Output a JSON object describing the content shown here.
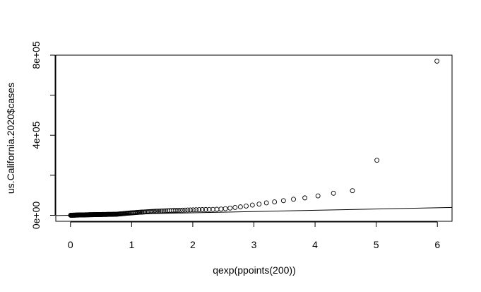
{
  "chart_data": {
    "type": "scatter",
    "title": "",
    "xlabel": "qexp(ppoints(200))",
    "ylabel": "us.California.2020$cases",
    "xlim": [
      -0.24,
      6.24
    ],
    "ylim": [
      -30000,
      800000
    ],
    "x_ticks": [
      0,
      1,
      2,
      3,
      4,
      5,
      6
    ],
    "x_tick_labels": [
      "0",
      "1",
      "2",
      "3",
      "4",
      "5",
      "6"
    ],
    "y_ticks": [
      0,
      400000,
      800000
    ],
    "y_tick_labels": [
      "0e+00",
      "4e+05",
      "8e+05"
    ],
    "y_minor_ticks": [
      200000,
      600000
    ],
    "grid": false,
    "reference_line": {
      "slope": 6300,
      "intercept": 0
    },
    "points": [
      [
        0.0025,
        100
      ],
      [
        0.0075,
        200
      ],
      [
        0.0125,
        250
      ],
      [
        0.0176,
        300
      ],
      [
        0.0227,
        350
      ],
      [
        0.0278,
        400
      ],
      [
        0.033,
        450
      ],
      [
        0.0382,
        500
      ],
      [
        0.0434,
        550
      ],
      [
        0.0486,
        600
      ],
      [
        0.0539,
        650
      ],
      [
        0.0592,
        700
      ],
      [
        0.0646,
        750
      ],
      [
        0.07,
        800
      ],
      [
        0.0754,
        850
      ],
      [
        0.0808,
        900
      ],
      [
        0.0863,
        950
      ],
      [
        0.0919,
        1000
      ],
      [
        0.0974,
        1050
      ],
      [
        0.103,
        1100
      ],
      [
        0.1087,
        1150
      ],
      [
        0.1143,
        1200
      ],
      [
        0.1201,
        1250
      ],
      [
        0.1258,
        1300
      ],
      [
        0.1316,
        1350
      ],
      [
        0.1374,
        1400
      ],
      [
        0.1433,
        1450
      ],
      [
        0.1492,
        1500
      ],
      [
        0.1552,
        1550
      ],
      [
        0.1612,
        1600
      ],
      [
        0.1672,
        1650
      ],
      [
        0.1733,
        1700
      ],
      [
        0.1795,
        1750
      ],
      [
        0.1856,
        1800
      ],
      [
        0.1919,
        1850
      ],
      [
        0.1981,
        1900
      ],
      [
        0.2045,
        1950
      ],
      [
        0.2108,
        2000
      ],
      [
        0.2172,
        2050
      ],
      [
        0.2237,
        2100
      ],
      [
        0.2302,
        2150
      ],
      [
        0.2368,
        2200
      ],
      [
        0.2434,
        2250
      ],
      [
        0.2501,
        2300
      ],
      [
        0.2568,
        2350
      ],
      [
        0.2636,
        2400
      ],
      [
        0.2704,
        2450
      ],
      [
        0.2773,
        2500
      ],
      [
        0.2843,
        2550
      ],
      [
        0.2913,
        2600
      ],
      [
        0.2984,
        2650
      ],
      [
        0.3055,
        2700
      ],
      [
        0.3127,
        2750
      ],
      [
        0.32,
        2800
      ],
      [
        0.3273,
        2850
      ],
      [
        0.3347,
        2900
      ],
      [
        0.3422,
        2950
      ],
      [
        0.3497,
        3000
      ],
      [
        0.3573,
        3050
      ],
      [
        0.365,
        3100
      ],
      [
        0.3727,
        3150
      ],
      [
        0.3805,
        3200
      ],
      [
        0.3884,
        3250
      ],
      [
        0.3964,
        3300
      ],
      [
        0.4045,
        3350
      ],
      [
        0.4126,
        3400
      ],
      [
        0.4208,
        3450
      ],
      [
        0.4291,
        3500
      ],
      [
        0.4375,
        3550
      ],
      [
        0.446,
        3600
      ],
      [
        0.4545,
        3650
      ],
      [
        0.4632,
        3700
      ],
      [
        0.4719,
        3750
      ],
      [
        0.4808,
        3800
      ],
      [
        0.4897,
        3850
      ],
      [
        0.4987,
        3900
      ],
      [
        0.5079,
        3950
      ],
      [
        0.5171,
        4000
      ],
      [
        0.5264,
        4050
      ],
      [
        0.5359,
        4100
      ],
      [
        0.5455,
        4150
      ],
      [
        0.5551,
        4200
      ],
      [
        0.5649,
        4250
      ],
      [
        0.5748,
        4300
      ],
      [
        0.5849,
        4350
      ],
      [
        0.595,
        4400
      ],
      [
        0.6053,
        4450
      ],
      [
        0.6157,
        4500
      ],
      [
        0.6263,
        4550
      ],
      [
        0.6369,
        4600
      ],
      [
        0.6477,
        4650
      ],
      [
        0.6587,
        4700
      ],
      [
        0.6698,
        4750
      ],
      [
        0.681,
        4800
      ],
      [
        0.6924,
        4850
      ],
      [
        0.704,
        4900
      ],
      [
        0.7157,
        4950
      ],
      [
        0.7276,
        5000
      ],
      [
        0.7396,
        5050
      ],
      [
        0.7518,
        5100
      ],
      [
        0.7642,
        5500
      ],
      [
        0.7768,
        5900
      ],
      [
        0.7896,
        6300
      ],
      [
        0.8025,
        6700
      ],
      [
        0.8157,
        7100
      ],
      [
        0.829,
        7500
      ],
      [
        0.8426,
        7900
      ],
      [
        0.8564,
        8300
      ],
      [
        0.8704,
        8700
      ],
      [
        0.8847,
        9100
      ],
      [
        0.8991,
        9500
      ],
      [
        0.9139,
        9900
      ],
      [
        0.9288,
        10300
      ],
      [
        0.9441,
        10700
      ],
      [
        0.9596,
        11100
      ],
      [
        0.9753,
        11500
      ],
      [
        0.9914,
        11900
      ],
      [
        1.0078,
        12300
      ],
      [
        1.0244,
        12700
      ],
      [
        1.0414,
        13100
      ],
      [
        1.0587,
        13500
      ],
      [
        1.0764,
        13900
      ],
      [
        1.0944,
        14300
      ],
      [
        1.1128,
        14700
      ],
      [
        1.1315,
        15100
      ],
      [
        1.1507,
        15500
      ],
      [
        1.1703,
        15900
      ],
      [
        1.1903,
        16300
      ],
      [
        1.2108,
        16700
      ],
      [
        1.2317,
        17100
      ],
      [
        1.2532,
        17500
      ],
      [
        1.2751,
        17900
      ],
      [
        1.2976,
        18300
      ],
      [
        1.3207,
        18700
      ],
      [
        1.3444,
        19100
      ],
      [
        1.3687,
        19500
      ],
      [
        1.3936,
        19900
      ],
      [
        1.4192,
        20300
      ],
      [
        1.4456,
        20700
      ],
      [
        1.4727,
        21100
      ],
      [
        1.5005,
        21500
      ],
      [
        1.5292,
        21900
      ],
      [
        1.5588,
        22300
      ],
      [
        1.5893,
        22700
      ],
      [
        1.6208,
        23100
      ],
      [
        1.6533,
        23500
      ],
      [
        1.687,
        23900
      ],
      [
        1.7218,
        24300
      ],
      [
        1.7579,
        24700
      ],
      [
        1.7953,
        25100
      ],
      [
        1.8342,
        25500
      ],
      [
        1.8746,
        25900
      ],
      [
        1.9166,
        26300
      ],
      [
        1.9604,
        26700
      ],
      [
        2.0061,
        27100
      ],
      [
        2.0539,
        27500
      ],
      [
        2.1038,
        27900
      ],
      [
        2.1561,
        28300
      ],
      [
        2.211,
        28700
      ],
      [
        2.2688,
        29100
      ],
      [
        2.3296,
        29500
      ],
      [
        2.3938,
        30000
      ],
      [
        2.4617,
        31000
      ],
      [
        2.5337,
        33000
      ],
      [
        2.6103,
        36000
      ],
      [
        2.692,
        39000
      ],
      [
        2.7794,
        42000
      ],
      [
        2.8733,
        46000
      ],
      [
        2.9746,
        51000
      ],
      [
        3.0846,
        56000
      ],
      [
        3.2047,
        62000
      ],
      [
        3.3368,
        67000
      ],
      [
        3.4832,
        73000
      ],
      [
        3.6471,
        80000
      ],
      [
        3.8329,
        87000
      ],
      [
        4.0474,
        97000
      ],
      [
        4.301,
        110000
      ],
      [
        4.6112,
        123000
      ],
      [
        5.0111,
        275000
      ],
      [
        5.9931,
        770000
      ]
    ]
  }
}
